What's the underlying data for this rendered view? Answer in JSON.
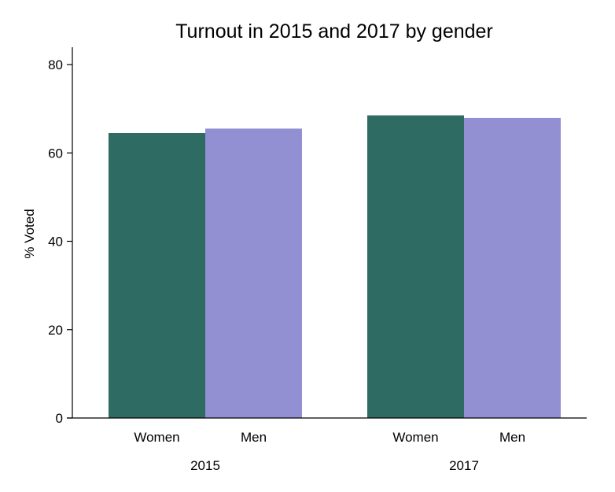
{
  "chart_data": {
    "type": "bar",
    "title": "Turnout in 2015 and 2017 by gender",
    "xlabel": "",
    "ylabel": "% Voted",
    "ylim": [
      0,
      80
    ],
    "yticks": [
      0,
      20,
      40,
      60,
      80
    ],
    "grid": false,
    "legend": "none",
    "groups": [
      "2015",
      "2017"
    ],
    "categories": [
      "Women",
      "Men"
    ],
    "series": [
      {
        "label": "Women",
        "values": [
          64.5,
          68.5
        ],
        "color": "#2e6b63"
      },
      {
        "label": "Men",
        "values": [
          65.5,
          67.9
        ],
        "color": "#938fd3"
      }
    ]
  }
}
